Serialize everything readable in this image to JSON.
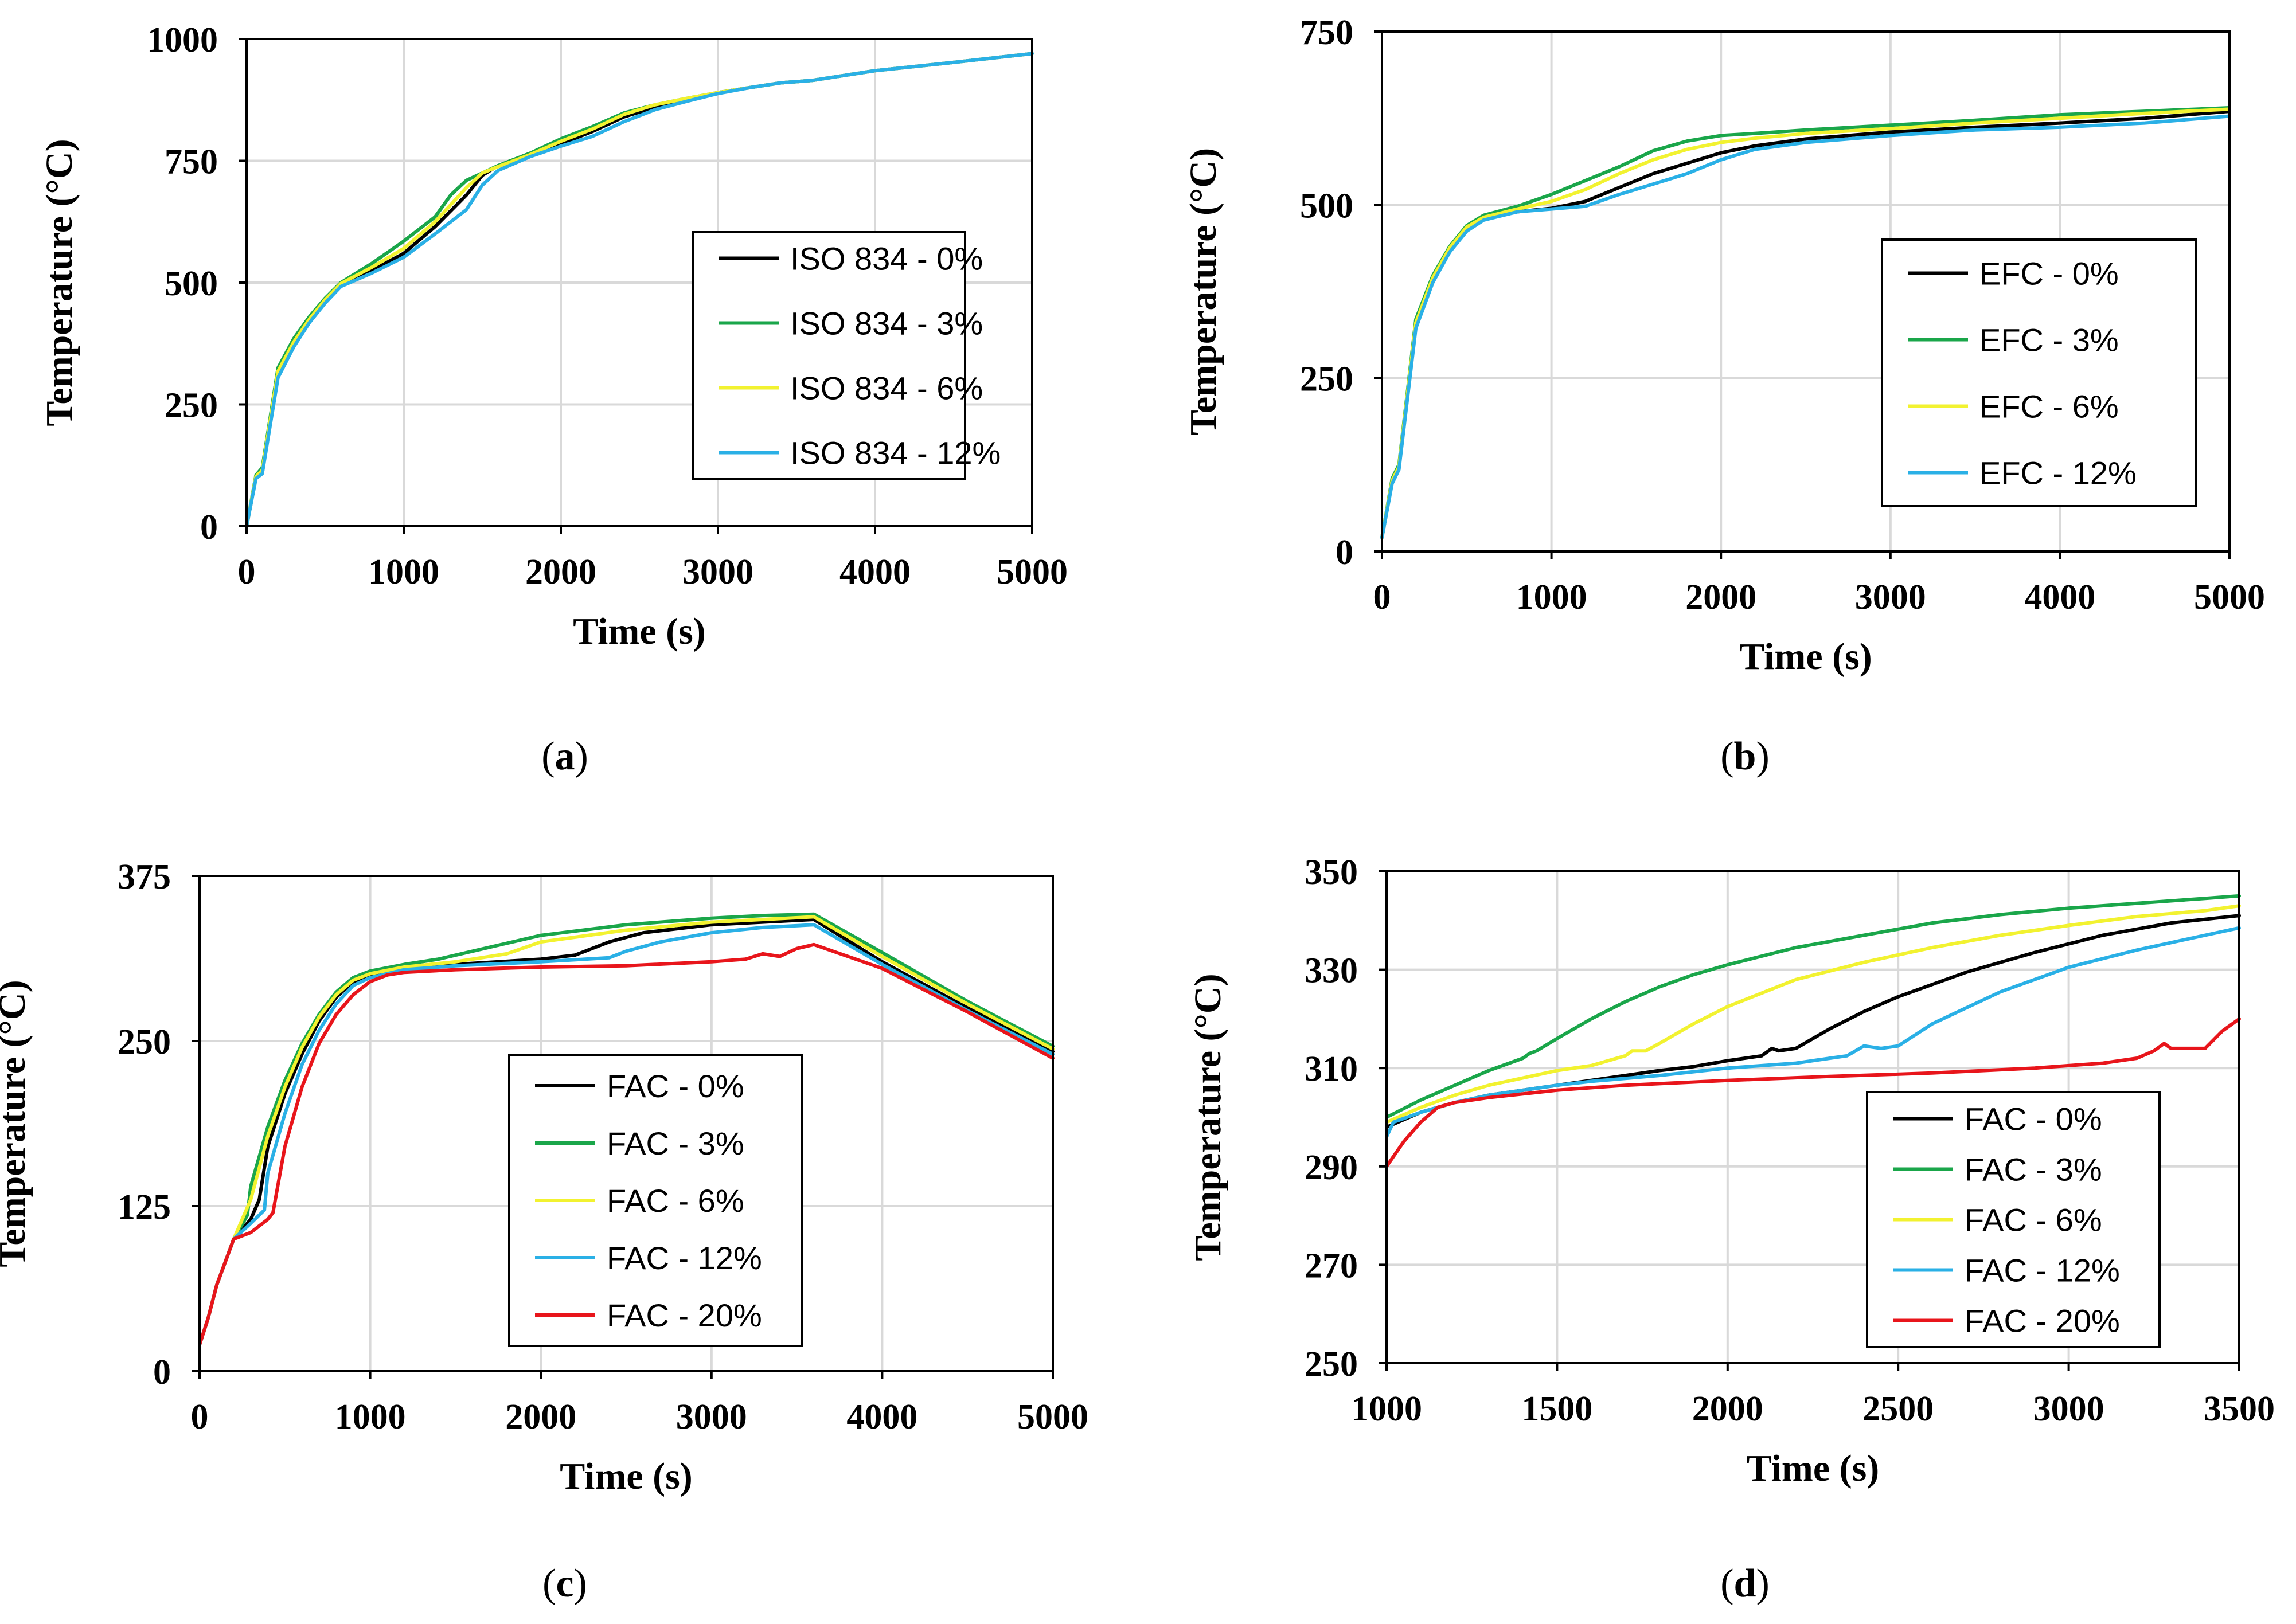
{
  "colors": {
    "black": "#000000",
    "green": "#1aa64a",
    "yellow": "#f2f230",
    "blue": "#2ab0e6",
    "red": "#e8151b",
    "grid": "#d9d9d9"
  },
  "chart_data": [
    {
      "panel": "a",
      "caption_letter": "a",
      "type": "line",
      "xlabel": "Time (s)",
      "ylabel": "Temperature (°C)",
      "xlim": [
        0,
        5000
      ],
      "ylim": [
        0,
        1000
      ],
      "xticks": [
        0,
        1000,
        2000,
        3000,
        4000,
        5000
      ],
      "yticks": [
        0,
        250,
        500,
        750,
        1000
      ],
      "legend_position": "center-right",
      "series": [
        {
          "name": "ISO 834 - 0%",
          "color": "black",
          "x": [
            0,
            60,
            100,
            200,
            300,
            400,
            500,
            600,
            800,
            1000,
            1200,
            1400,
            1500,
            1600,
            1800,
            2000,
            2200,
            2400,
            2600,
            2800,
            3000,
            3200,
            3400,
            3600,
            3800,
            4000,
            4500,
            5000
          ],
          "y": [
            0,
            100,
            110,
            310,
            370,
            420,
            460,
            495,
            525,
            560,
            615,
            680,
            720,
            740,
            765,
            785,
            810,
            840,
            860,
            875,
            890,
            900,
            910,
            915,
            925,
            935,
            952,
            970
          ]
        },
        {
          "name": "ISO 834 - 3%",
          "color": "green",
          "x": [
            0,
            60,
            100,
            200,
            300,
            400,
            500,
            600,
            800,
            1000,
            1200,
            1300,
            1400,
            1500,
            1600,
            1800,
            2000,
            2200,
            2400,
            2600,
            2800,
            3000,
            3200,
            3400,
            3600,
            3800,
            4000,
            4500,
            5000
          ],
          "y": [
            0,
            105,
            120,
            325,
            385,
            430,
            468,
            500,
            540,
            585,
            635,
            680,
            710,
            725,
            740,
            765,
            795,
            820,
            848,
            865,
            878,
            890,
            900,
            910,
            915,
            925,
            935,
            952,
            970
          ]
        },
        {
          "name": "ISO 834 - 6%",
          "color": "yellow",
          "x": [
            0,
            60,
            100,
            200,
            300,
            400,
            500,
            600,
            800,
            1000,
            1200,
            1400,
            1500,
            1600,
            1800,
            2000,
            2200,
            2400,
            2600,
            2800,
            3000,
            3200,
            3400,
            3600,
            3800,
            4000,
            4500,
            5000
          ],
          "y": [
            0,
            102,
            115,
            318,
            378,
            425,
            465,
            498,
            532,
            570,
            625,
            695,
            725,
            738,
            762,
            790,
            815,
            845,
            865,
            878,
            890,
            900,
            910,
            915,
            925,
            935,
            952,
            970
          ]
        },
        {
          "name": "ISO 834 - 12%",
          "color": "blue",
          "x": [
            0,
            60,
            100,
            200,
            300,
            400,
            500,
            600,
            800,
            1000,
            1200,
            1400,
            1500,
            1600,
            1800,
            2000,
            2200,
            2400,
            2600,
            2800,
            3000,
            3200,
            3400,
            3600,
            3800,
            4000,
            4500,
            5000
          ],
          "y": [
            0,
            98,
            108,
            305,
            368,
            418,
            458,
            492,
            520,
            552,
            600,
            650,
            700,
            730,
            758,
            780,
            800,
            830,
            855,
            872,
            888,
            900,
            910,
            915,
            925,
            935,
            952,
            970
          ]
        }
      ]
    },
    {
      "panel": "b",
      "caption_letter": "b",
      "type": "line",
      "xlabel": "Time (s)",
      "ylabel": "Temperature (°C)",
      "xlim": [
        0,
        5000
      ],
      "ylim": [
        0,
        750
      ],
      "xticks": [
        0,
        1000,
        2000,
        3000,
        4000,
        5000
      ],
      "yticks": [
        0,
        250,
        500,
        750
      ],
      "legend_position": "right",
      "series": [
        {
          "name": "EFC - 0%",
          "color": "black",
          "x": [
            0,
            60,
            100,
            200,
            300,
            400,
            500,
            600,
            800,
            1000,
            1200,
            1400,
            1600,
            1800,
            2000,
            2200,
            2500,
            3000,
            3500,
            4000,
            4500,
            5000
          ],
          "y": [
            20,
            100,
            120,
            325,
            390,
            435,
            465,
            480,
            490,
            495,
            505,
            525,
            545,
            560,
            575,
            585,
            595,
            605,
            612,
            618,
            625,
            635
          ]
        },
        {
          "name": "EFC - 3%",
          "color": "green",
          "x": [
            0,
            60,
            100,
            200,
            300,
            400,
            500,
            600,
            800,
            1000,
            1200,
            1400,
            1600,
            1800,
            2000,
            2200,
            2500,
            3000,
            3500,
            4000,
            4500,
            5000
          ],
          "y": [
            20,
            105,
            125,
            335,
            398,
            440,
            470,
            485,
            498,
            515,
            535,
            555,
            578,
            592,
            600,
            603,
            608,
            615,
            622,
            630,
            635,
            640
          ]
        },
        {
          "name": "EFC - 6%",
          "color": "yellow",
          "x": [
            0,
            60,
            100,
            200,
            300,
            400,
            500,
            600,
            800,
            1000,
            1200,
            1400,
            1600,
            1800,
            2000,
            2200,
            2500,
            3000,
            3500,
            4000,
            4500,
            5000
          ],
          "y": [
            20,
            102,
            122,
            330,
            395,
            438,
            468,
            482,
            494,
            505,
            522,
            545,
            565,
            580,
            590,
            596,
            603,
            610,
            618,
            625,
            632,
            638
          ]
        },
        {
          "name": "EFC - 12%",
          "color": "blue",
          "x": [
            0,
            60,
            100,
            200,
            300,
            400,
            500,
            600,
            800,
            1000,
            1200,
            1400,
            1600,
            1800,
            2000,
            2200,
            2500,
            3000,
            3500,
            4000,
            4500,
            5000
          ],
          "y": [
            20,
            98,
            118,
            322,
            388,
            432,
            462,
            478,
            490,
            494,
            498,
            515,
            530,
            545,
            565,
            580,
            590,
            600,
            608,
            612,
            618,
            628
          ]
        }
      ]
    },
    {
      "panel": "c",
      "caption_letter": "c",
      "type": "line",
      "xlabel": "Time (s)",
      "ylabel": "Temperature (°C)",
      "xlim": [
        0,
        5000
      ],
      "ylim": [
        0,
        375
      ],
      "xticks": [
        0,
        1000,
        2000,
        3000,
        4000,
        5000
      ],
      "yticks": [
        0,
        125,
        250,
        375
      ],
      "legend_position": "bottom-center",
      "series": [
        {
          "name": "FAC - 0%",
          "color": "black",
          "x": [
            0,
            50,
            100,
            200,
            300,
            350,
            400,
            500,
            600,
            700,
            800,
            900,
            1000,
            1200,
            1500,
            2000,
            2200,
            2400,
            2600,
            3000,
            3300,
            3600,
            4000,
            4500,
            5000
          ],
          "y": [
            20,
            40,
            65,
            100,
            115,
            130,
            170,
            210,
            240,
            265,
            283,
            295,
            300,
            305,
            308,
            312,
            315,
            325,
            332,
            338,
            340,
            342,
            310,
            275,
            242
          ]
        },
        {
          "name": "FAC - 3%",
          "color": "green",
          "x": [
            0,
            50,
            100,
            200,
            280,
            300,
            400,
            500,
            600,
            700,
            800,
            900,
            1000,
            1200,
            1400,
            1600,
            1800,
            2000,
            2500,
            3000,
            3300,
            3600,
            4000,
            4500,
            5000
          ],
          "y": [
            20,
            40,
            65,
            100,
            118,
            140,
            185,
            220,
            248,
            270,
            287,
            298,
            303,
            308,
            312,
            318,
            324,
            330,
            338,
            343,
            345,
            346,
            317,
            280,
            246
          ]
        },
        {
          "name": "FAC  - 6%",
          "color": "yellow",
          "x": [
            0,
            50,
            100,
            200,
            300,
            400,
            500,
            600,
            700,
            800,
            900,
            1000,
            1200,
            1500,
            1800,
            2000,
            2500,
            3000,
            3300,
            3600,
            4000,
            4500,
            5000
          ],
          "y": [
            20,
            40,
            65,
            100,
            130,
            178,
            215,
            245,
            268,
            285,
            296,
            301,
            306,
            310,
            316,
            325,
            334,
            340,
            342,
            344,
            314,
            278,
            244
          ]
        },
        {
          "name": "FAC  - 12%",
          "color": "blue",
          "x": [
            0,
            50,
            100,
            200,
            300,
            380,
            400,
            500,
            600,
            700,
            800,
            900,
            1000,
            1200,
            1500,
            2000,
            2400,
            2500,
            2700,
            3000,
            3300,
            3600,
            4000,
            4500,
            5000
          ],
          "y": [
            20,
            40,
            65,
            100,
            112,
            122,
            150,
            195,
            232,
            258,
            278,
            292,
            298,
            304,
            307,
            310,
            313,
            318,
            325,
            332,
            336,
            338,
            308,
            273,
            240
          ]
        },
        {
          "name": "FAC - 20%",
          "color": "red",
          "x": [
            0,
            50,
            100,
            200,
            300,
            400,
            430,
            500,
            600,
            700,
            800,
            900,
            1000,
            1100,
            1200,
            1500,
            2000,
            2500,
            3000,
            3200,
            3300,
            3400,
            3500,
            3600,
            4000,
            4500,
            5000
          ],
          "y": [
            20,
            40,
            65,
            100,
            105,
            115,
            120,
            170,
            215,
            248,
            270,
            285,
            295,
            300,
            302,
            304,
            306,
            307,
            310,
            312,
            316,
            314,
            320,
            323,
            305,
            272,
            237
          ]
        }
      ]
    },
    {
      "panel": "d",
      "caption_letter": "d",
      "type": "line",
      "xlabel": "Time (s)",
      "ylabel": "Temperature (°C)",
      "xlim": [
        1000,
        3500
      ],
      "ylim": [
        250,
        350
      ],
      "xticks": [
        1000,
        1500,
        2000,
        2500,
        3000,
        3500
      ],
      "yticks": [
        250,
        270,
        290,
        310,
        330,
        350
      ],
      "legend_position": "bottom-right",
      "series": [
        {
          "name": "FAC - 0%",
          "color": "black",
          "x": [
            1000,
            1100,
            1200,
            1300,
            1400,
            1500,
            1600,
            1700,
            1800,
            1900,
            2000,
            2100,
            2130,
            2150,
            2200,
            2300,
            2400,
            2500,
            2700,
            2900,
            3100,
            3300,
            3500
          ],
          "y": [
            298,
            301,
            303,
            304.5,
            305.5,
            306.5,
            307.5,
            308.5,
            309.5,
            310.3,
            311.5,
            312.5,
            314,
            313.5,
            314,
            318,
            321.5,
            324.5,
            329.5,
            333.5,
            337,
            339.5,
            341
          ]
        },
        {
          "name": "FAC - 3%",
          "color": "green",
          "x": [
            1000,
            1100,
            1200,
            1300,
            1400,
            1420,
            1440,
            1500,
            1600,
            1700,
            1800,
            1900,
            2000,
            2200,
            2400,
            2600,
            2800,
            3000,
            3200,
            3400,
            3500
          ],
          "y": [
            300,
            303.5,
            306.5,
            309.5,
            312,
            313,
            313.5,
            316,
            320,
            323.5,
            326.5,
            329,
            331,
            334.5,
            337,
            339.5,
            341.2,
            342.5,
            343.5,
            344.5,
            345
          ]
        },
        {
          "name": "FAC  - 6%",
          "color": "yellow",
          "x": [
            1000,
            1100,
            1200,
            1300,
            1400,
            1500,
            1600,
            1700,
            1720,
            1760,
            1800,
            1900,
            2000,
            2200,
            2400,
            2600,
            2800,
            3000,
            3200,
            3400,
            3500
          ],
          "y": [
            299,
            302,
            304.5,
            306.5,
            308,
            309.5,
            310.5,
            312.5,
            313.5,
            313.5,
            315,
            319,
            322.5,
            328,
            331.5,
            334.5,
            337,
            339,
            340.8,
            342,
            343
          ]
        },
        {
          "name": "FAC  - 12%",
          "color": "blue",
          "x": [
            1000,
            1020,
            1100,
            1200,
            1300,
            1400,
            1500,
            1600,
            1800,
            2000,
            2200,
            2300,
            2350,
            2400,
            2450,
            2500,
            2600,
            2800,
            3000,
            3200,
            3400,
            3500
          ],
          "y": [
            296,
            299,
            301,
            303,
            304.5,
            305.5,
            306.5,
            307.3,
            308.5,
            310,
            311,
            312,
            312.5,
            314.5,
            314,
            314.5,
            319,
            325.5,
            330.5,
            334,
            337,
            338.5
          ]
        },
        {
          "name": "FAC - 20%",
          "color": "red",
          "x": [
            1000,
            1050,
            1100,
            1150,
            1200,
            1300,
            1500,
            1700,
            2000,
            2300,
            2600,
            2900,
            3000,
            3100,
            3200,
            3250,
            3280,
            3300,
            3350,
            3400,
            3450,
            3500
          ],
          "y": [
            290,
            295,
            299,
            302,
            303,
            304,
            305.5,
            306.5,
            307.5,
            308.3,
            309,
            310,
            310.5,
            311,
            312,
            313.5,
            315,
            314,
            314,
            314,
            317.5,
            320
          ]
        }
      ]
    }
  ]
}
